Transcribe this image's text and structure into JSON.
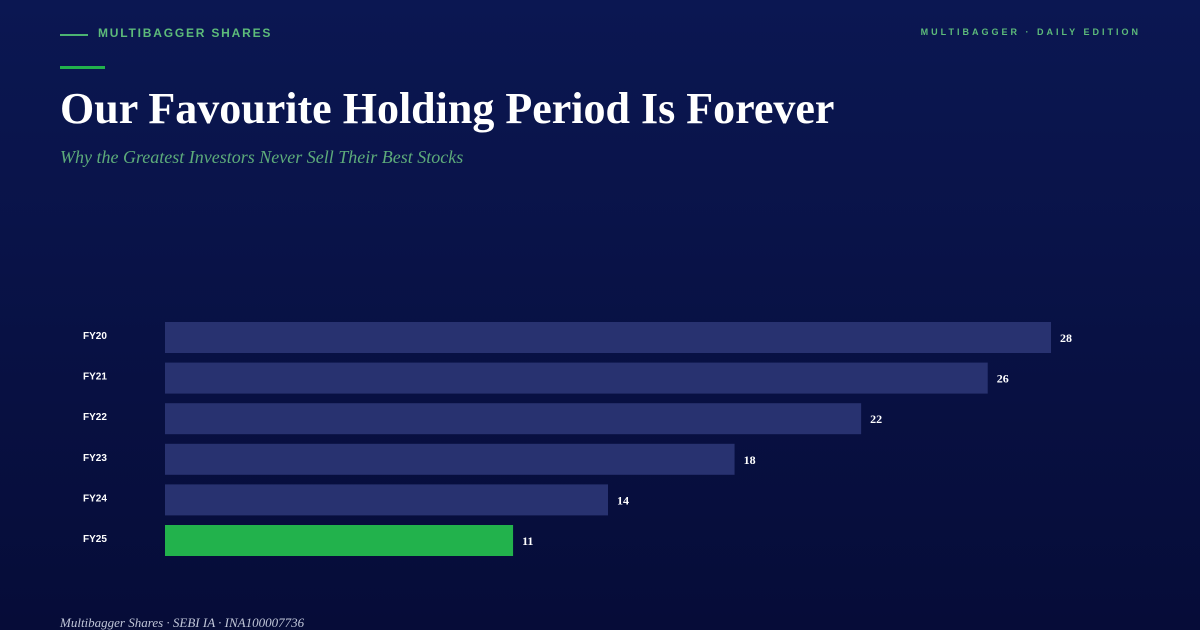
{
  "header": {
    "brand": "MULTIBAGGER SHARES",
    "edition": "MULTIBAGGER · DAILY EDITION"
  },
  "chart_data": {
    "type": "bar",
    "orientation": "horizontal",
    "title": "Our Favourite Holding Period Is Forever",
    "subtitle": "Why the Greatest Investors Never Sell Their Best Stocks",
    "categories": [
      "FY20",
      "FY21",
      "FY22",
      "FY23",
      "FY24",
      "FY25"
    ],
    "values": [
      28,
      26,
      22,
      18,
      14,
      11
    ],
    "colors": [
      "#283270",
      "#283270",
      "#283270",
      "#283270",
      "#283270",
      "#22b24c"
    ]
  },
  "footer": {
    "text": "Multibagger Shares · SEBI IA · INA100007736"
  }
}
